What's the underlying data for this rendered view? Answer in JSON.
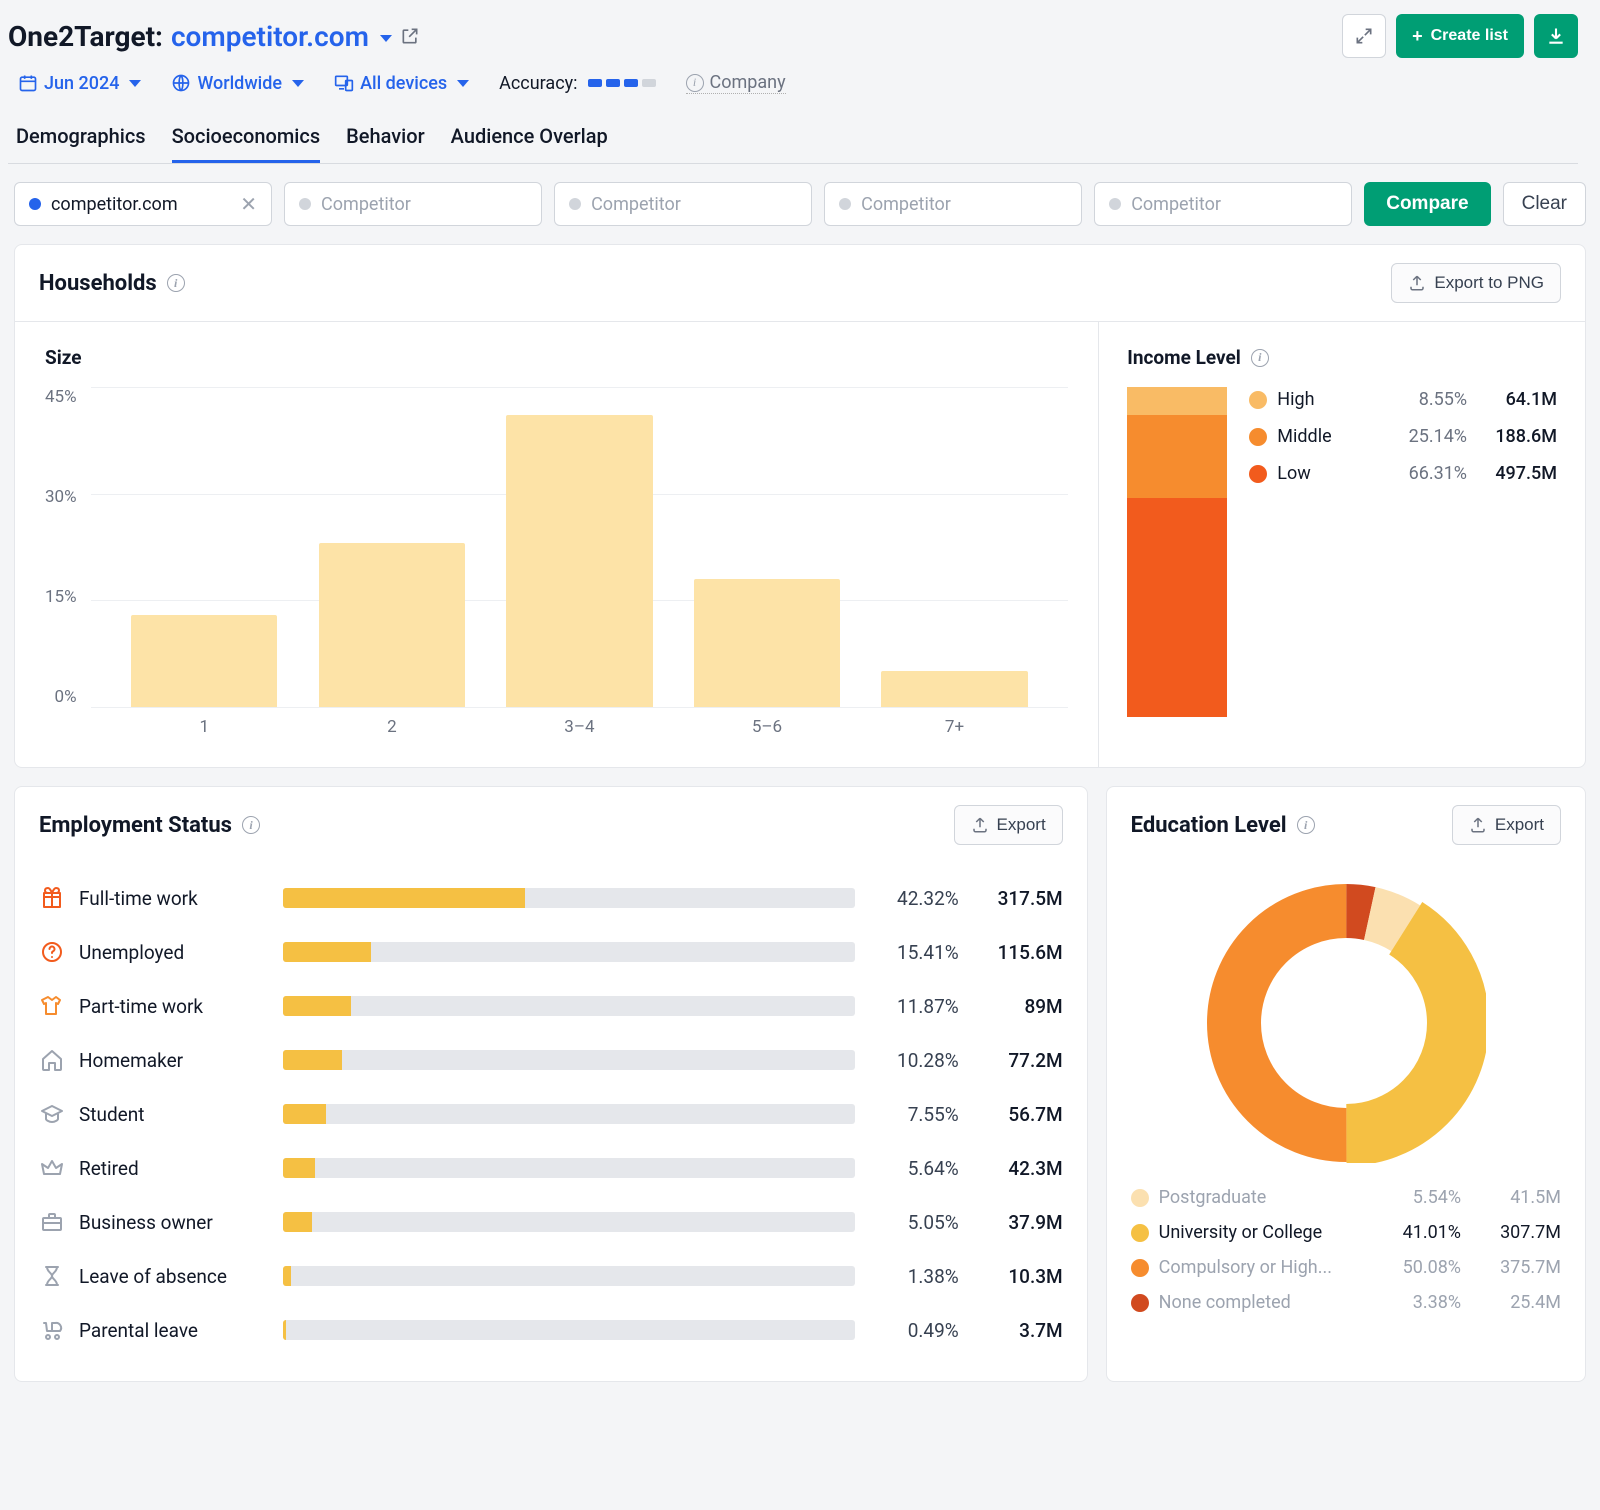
{
  "header": {
    "app_title": "One2Target:",
    "domain": "competitor.com",
    "create_list_label": "Create list"
  },
  "filters": {
    "date": "Jun 2024",
    "region": "Worldwide",
    "devices": "All devices",
    "accuracy_label": "Accuracy:",
    "accuracy_filled": 3,
    "accuracy_total": 4,
    "company_label": "Company"
  },
  "tabs": [
    "Demographics",
    "Socioeconomics",
    "Behavior",
    "Audience Overlap"
  ],
  "active_tab": 1,
  "competitors": {
    "selected": "competitor.com",
    "placeholder": "Competitor",
    "compare_label": "Compare",
    "clear_label": "Clear"
  },
  "households": {
    "title": "Households",
    "export_label": "Export to PNG",
    "size": {
      "title": "Size",
      "type": "bar",
      "categories": [
        "1",
        "2",
        "3–4",
        "5–6",
        "7+"
      ],
      "values": [
        13,
        23,
        41,
        18,
        5
      ],
      "ylim": [
        0,
        45
      ],
      "ytick_step": 15,
      "y_suffix": "%",
      "bar_color": "#fde3a7",
      "grid_color": "#edeff2"
    },
    "income": {
      "title": "Income Level",
      "type": "stacked",
      "items": [
        {
          "label": "High",
          "pct": "8.55%",
          "count": "64.1M",
          "color": "#f9bb65",
          "value": 8.55
        },
        {
          "label": "Middle",
          "pct": "25.14%",
          "count": "188.6M",
          "color": "#f68c2e",
          "value": 25.14
        },
        {
          "label": "Low",
          "pct": "66.31%",
          "count": "497.5M",
          "color": "#f25b1d",
          "value": 66.31
        }
      ]
    }
  },
  "employment": {
    "title": "Employment Status",
    "export_label": "Export",
    "bar_color": "#f5c043",
    "track_color": "#e5e7eb",
    "max_scale": 100,
    "items": [
      {
        "label": "Full-time work",
        "pct": "42.32%",
        "count": "317.5M",
        "value": 42.32,
        "icon": "gift",
        "icon_color": "#f25b1d"
      },
      {
        "label": "Unemployed",
        "pct": "15.41%",
        "count": "115.6M",
        "value": 15.41,
        "icon": "question",
        "icon_color": "#f25b1d"
      },
      {
        "label": "Part-time work",
        "pct": "11.87%",
        "count": "89M",
        "value": 11.87,
        "icon": "shirt",
        "icon_color": "#f68c2e"
      },
      {
        "label": "Homemaker",
        "pct": "10.28%",
        "count": "77.2M",
        "value": 10.28,
        "icon": "home",
        "icon_color": "#9ca3af"
      },
      {
        "label": "Student",
        "pct": "7.55%",
        "count": "56.7M",
        "value": 7.55,
        "icon": "graduation",
        "icon_color": "#9ca3af"
      },
      {
        "label": "Retired",
        "pct": "5.64%",
        "count": "42.3M",
        "value": 5.64,
        "icon": "crown",
        "icon_color": "#9ca3af"
      },
      {
        "label": "Business owner",
        "pct": "5.05%",
        "count": "37.9M",
        "value": 5.05,
        "icon": "briefcase",
        "icon_color": "#9ca3af"
      },
      {
        "label": "Leave of absence",
        "pct": "1.38%",
        "count": "10.3M",
        "value": 1.38,
        "icon": "hourglass",
        "icon_color": "#9ca3af"
      },
      {
        "label": "Parental leave",
        "pct": "0.49%",
        "count": "3.7M",
        "value": 0.49,
        "icon": "stroller",
        "icon_color": "#9ca3af"
      }
    ]
  },
  "education": {
    "title": "Education Level",
    "export_label": "Export",
    "type": "donut",
    "selected_index": 1,
    "items": [
      {
        "label": "Postgraduate",
        "pct": "5.54%",
        "count": "41.5M",
        "value": 5.54,
        "color": "#fbe0b0"
      },
      {
        "label": "University or College",
        "pct": "41.01%",
        "count": "307.7M",
        "value": 41.01,
        "color": "#f5c043"
      },
      {
        "label": "Compulsory or High...",
        "pct": "50.08%",
        "count": "375.7M",
        "value": 50.08,
        "color": "#f68c2e"
      },
      {
        "label": "None completed",
        "pct": "3.38%",
        "count": "25.4M",
        "value": 3.38,
        "color": "#d14a1f"
      }
    ],
    "stroke_width": 54,
    "radius": 112
  }
}
